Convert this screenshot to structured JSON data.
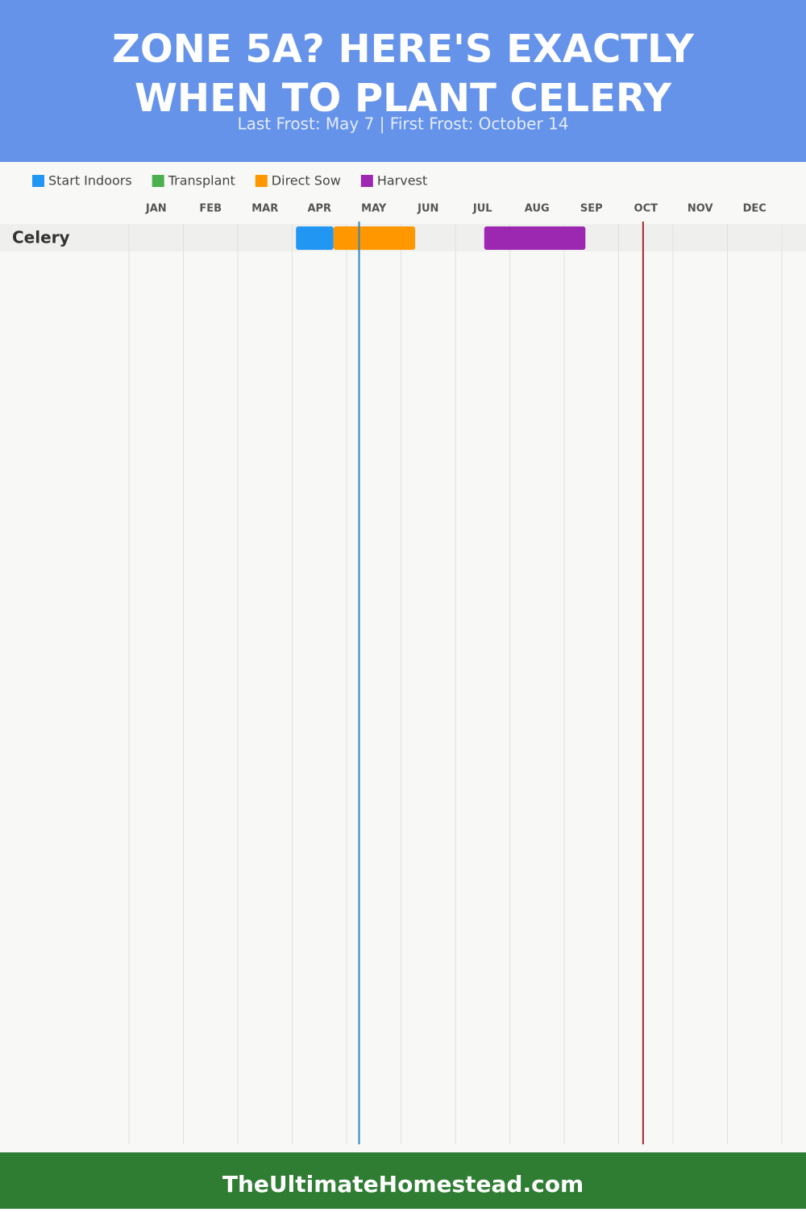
{
  "chart_data": {
    "type": "gantt",
    "title": [
      "ZONE 5A? HERE'S EXACTLY",
      "WHEN TO PLANT CELERY"
    ],
    "subtitle": "Last Frost: May 7 | First Frost: October 14",
    "categories": [
      "JAN",
      "FEB",
      "MAR",
      "APR",
      "MAY",
      "JUN",
      "JUL",
      "AUG",
      "SEP",
      "OCT",
      "NOV",
      "DEC"
    ],
    "xlim": [
      0,
      12
    ],
    "grid": true,
    "rows": [
      "Celery"
    ],
    "series": [
      {
        "name": "Start Indoors",
        "color": "#2196f3",
        "ranges": [
          [
            3.07,
            3.76
          ]
        ]
      },
      {
        "name": "Transplant",
        "color": "#4caf50",
        "ranges": []
      },
      {
        "name": "Direct Sow",
        "color": "#ff9800",
        "ranges": [
          [
            3.76,
            5.26
          ]
        ]
      },
      {
        "name": "Harvest",
        "color": "#9c27b0",
        "ranges": [
          [
            6.53,
            8.39
          ]
        ]
      }
    ],
    "markers": [
      {
        "value": 4.23,
        "color": "#2e86c1"
      },
      {
        "value": 9.45,
        "color": "#a52a2a"
      }
    ]
  },
  "footer": "TheUltimateHomestead.com"
}
